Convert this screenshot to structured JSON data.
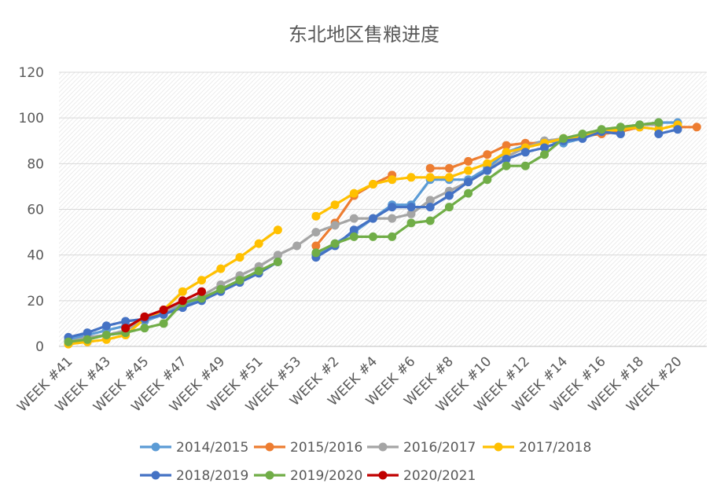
{
  "chart_data": {
    "type": "line",
    "title": "东北地区售粮进度",
    "xlabel": "",
    "ylabel": "",
    "ylim": [
      0,
      120
    ],
    "yticks": [
      0,
      20,
      40,
      60,
      80,
      100,
      120
    ],
    "grid": true,
    "legend_position": "bottom",
    "x": [
      "WEEK #41",
      "WEEK #42",
      "WEEK #43",
      "WEEK #44",
      "WEEK #45",
      "WEEK #46",
      "WEEK #47",
      "WEEK #48",
      "WEEK #49",
      "WEEK #50",
      "WEEK #51",
      "WEEK #52",
      "WEEK #53",
      "WEEK #1",
      "WEEK #2",
      "WEEK #3",
      "WEEK #4",
      "WEEK #5",
      "WEEK #6",
      "WEEK #7",
      "WEEK #8",
      "WEEK #9",
      "WEEK #10",
      "WEEK #11",
      "WEEK #12",
      "WEEK #13",
      "WEEK #14",
      "WEEK #15",
      "WEEK #16",
      "WEEK #17",
      "WEEK #18",
      "WEEK #19",
      "WEEK #20",
      "WEEK #21"
    ],
    "x_tick_labels": [
      "WEEK #41",
      "WEEK #43",
      "WEEK #45",
      "WEEK #47",
      "WEEK #49",
      "WEEK #51",
      "WEEK #53",
      "WEEK #2",
      "WEEK #4",
      "WEEK #6",
      "WEEK #8",
      "WEEK #10",
      "WEEK #12",
      "WEEK #14",
      "WEEK #16",
      "WEEK #18",
      "WEEK #20"
    ],
    "series": [
      {
        "name": "2014/2015",
        "color": "#5B9BD5",
        "values": [
          3,
          5,
          7,
          9,
          11,
          14,
          18,
          21,
          25,
          29,
          33,
          null,
          null,
          40,
          45,
          50,
          56,
          62,
          62,
          73,
          73,
          73,
          78,
          85,
          88,
          90,
          89,
          91,
          94,
          94,
          97,
          98,
          98,
          null
        ]
      },
      {
        "name": "2015/2016",
        "color": "#ED7D31",
        "values": [
          null,
          null,
          null,
          null,
          null,
          null,
          null,
          null,
          null,
          null,
          null,
          null,
          null,
          44,
          54,
          66,
          71,
          75,
          null,
          78,
          78,
          81,
          84,
          88,
          89,
          89,
          91,
          92,
          93,
          94,
          96,
          null,
          96,
          96
        ]
      },
      {
        "name": "2016/2017",
        "color": "#A5A5A5",
        "values": [
          2,
          4,
          5,
          7,
          12,
          15,
          19,
          22,
          27,
          31,
          35,
          40,
          44,
          50,
          53,
          56,
          56,
          56,
          58,
          64,
          68,
          72,
          77,
          83,
          87,
          90,
          91,
          92,
          94,
          96,
          97,
          97,
          null,
          null
        ]
      },
      {
        "name": "2017/2018",
        "color": "#FFC000",
        "values": [
          1,
          2,
          3,
          5,
          12,
          16,
          24,
          29,
          34,
          39,
          45,
          51,
          null,
          57,
          62,
          67,
          71,
          73,
          74,
          74,
          74,
          77,
          80,
          85,
          87,
          89,
          91,
          92,
          94,
          95,
          96,
          95,
          97,
          null
        ]
      },
      {
        "name": "2018/2019",
        "color": "#4472C4",
        "values": [
          4,
          6,
          9,
          11,
          12,
          14,
          17,
          20,
          24,
          28,
          32,
          37,
          null,
          39,
          44,
          51,
          56,
          61,
          61,
          61,
          66,
          72,
          77,
          82,
          85,
          87,
          90,
          91,
          94,
          93,
          null,
          93,
          95,
          null
        ]
      },
      {
        "name": "2019/2020",
        "color": "#70AD47",
        "values": [
          2,
          3,
          5,
          6,
          8,
          10,
          19,
          21,
          25,
          29,
          33,
          37,
          null,
          41,
          45,
          48,
          48,
          48,
          54,
          55,
          61,
          67,
          73,
          79,
          79,
          84,
          91,
          93,
          95,
          96,
          97,
          98,
          null,
          null
        ]
      },
      {
        "name": "2020/2021",
        "color": "#C00000",
        "values": [
          null,
          null,
          null,
          8,
          13,
          16,
          20,
          24,
          null,
          null,
          null,
          null,
          null,
          null,
          null,
          null,
          null,
          null,
          null,
          null,
          null,
          null,
          null,
          null,
          null,
          null,
          null,
          null,
          null,
          null,
          null,
          null,
          null,
          null
        ]
      }
    ]
  }
}
